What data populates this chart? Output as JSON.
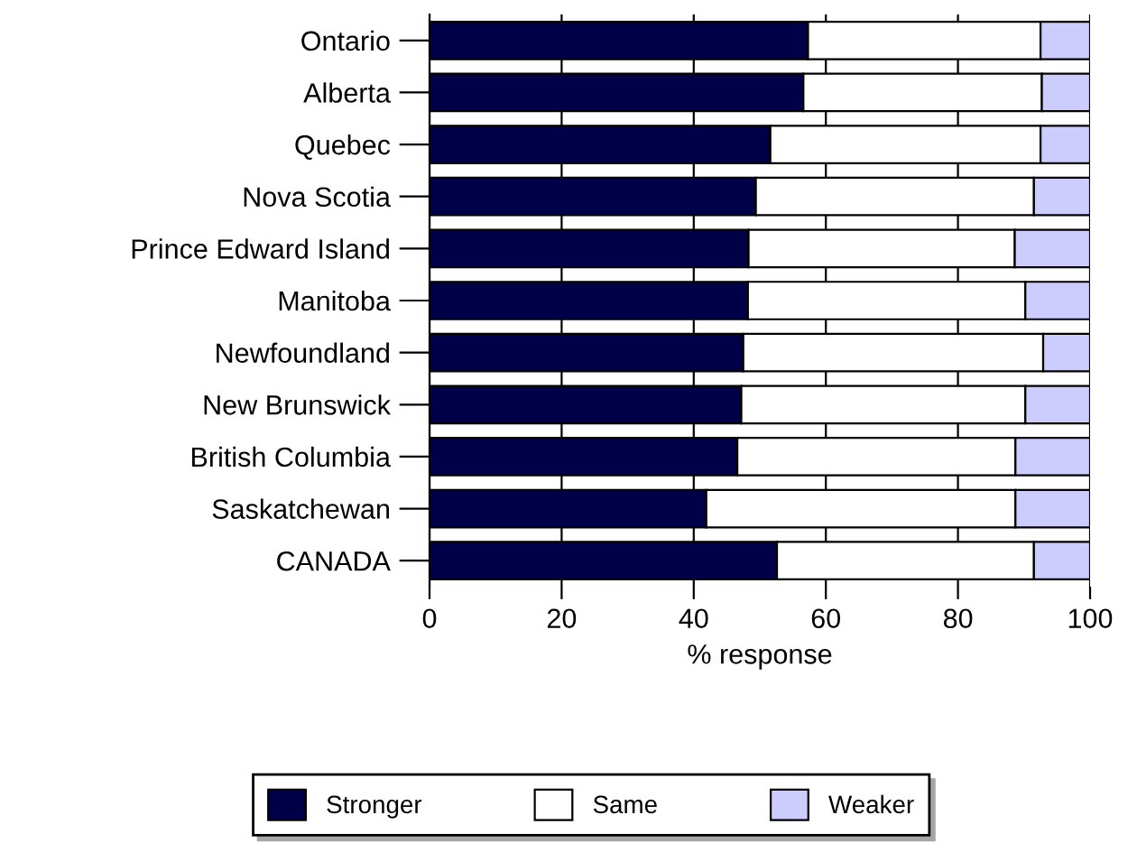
{
  "chart_data": {
    "type": "bar",
    "orientation": "horizontal",
    "stacked": true,
    "xlabel": "% response",
    "categories": [
      "Ontario",
      "Alberta",
      "Quebec",
      "Nova Scotia",
      "Prince Edward Island",
      "Manitoba",
      "Newfoundland",
      "New Brunswick",
      "British Columbia",
      "Saskatchewan",
      "CANADA"
    ],
    "series": [
      {
        "name": "Stronger",
        "color": "#000048",
        "values": [
          57.3,
          56.6,
          51.6,
          49.4,
          48.3,
          48.2,
          47.5,
          47.2,
          46.6,
          41.9,
          52.6
        ]
      },
      {
        "name": "Same",
        "color": "#ffffff",
        "values": [
          35.2,
          36.1,
          40.9,
          42.1,
          40.3,
          42.0,
          45.4,
          43.0,
          42.1,
          46.8,
          38.9
        ]
      },
      {
        "name": "Weaker",
        "color": "#ccccff",
        "values": [
          7.5,
          7.3,
          7.5,
          8.5,
          11.4,
          9.8,
          7.1,
          9.8,
          11.3,
          11.3,
          8.5
        ]
      }
    ],
    "xlim": [
      0,
      100
    ],
    "xticks": [
      0,
      20,
      40,
      60,
      80,
      100
    ],
    "grid": "x",
    "legend": "bottom"
  }
}
